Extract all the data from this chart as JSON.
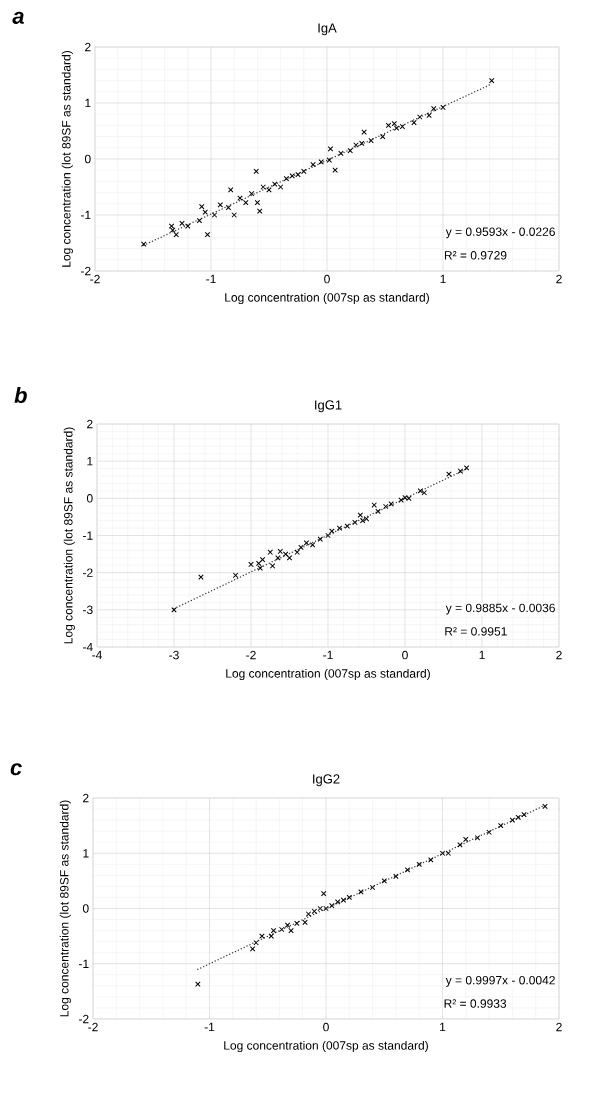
{
  "chart_data": [
    {
      "type": "scatter",
      "title": "IgA",
      "xlabel": "Log concentration (007sp as standard)",
      "ylabel": "Log concentration (lot 89SF as standard)",
      "xlim": [
        -2,
        2
      ],
      "ylim": [
        -2,
        2
      ],
      "xticks": [
        -2,
        -1,
        0,
        1,
        2
      ],
      "yticks": [
        -2,
        -1,
        0,
        1,
        2
      ],
      "grid": true,
      "annotations": [
        "a",
        "y = 0.9593x - 0.0226",
        "R² = 0.9729"
      ],
      "series": [
        {
          "type": "scatter",
          "color": "#000000",
          "marker": "cross",
          "x": [
            -1.58,
            -1.34,
            -1.33,
            -1.3,
            -1.25,
            -1.2,
            -1.1,
            -1.08,
            -1.05,
            -1.03,
            -0.97,
            -0.92,
            -0.85,
            -0.83,
            -0.8,
            -0.75,
            -0.7,
            -0.65,
            -0.61,
            -0.6,
            -0.58,
            -0.55,
            -0.5,
            -0.45,
            -0.4,
            -0.35,
            -0.3,
            -0.25,
            -0.2,
            -0.12,
            -0.05,
            0.02,
            0.03,
            0.07,
            0.12,
            0.2,
            0.25,
            0.3,
            0.32,
            0.38,
            0.48,
            0.53,
            0.58,
            0.6,
            0.65,
            0.75,
            0.8,
            0.88,
            0.92,
            1.0,
            1.42
          ],
          "values": [
            -1.52,
            -1.2,
            -1.27,
            -1.35,
            -1.15,
            -1.2,
            -1.1,
            -0.85,
            -0.95,
            -1.35,
            -1.0,
            -0.82,
            -0.87,
            -0.55,
            -1.0,
            -0.7,
            -0.78,
            -0.62,
            -0.22,
            -0.78,
            -0.93,
            -0.5,
            -0.55,
            -0.45,
            -0.5,
            -0.35,
            -0.3,
            -0.28,
            -0.22,
            -0.1,
            -0.05,
            -0.02,
            0.18,
            -0.2,
            0.1,
            0.15,
            0.25,
            0.28,
            0.48,
            0.33,
            0.4,
            0.6,
            0.63,
            0.55,
            0.58,
            0.65,
            0.75,
            0.78,
            0.9,
            0.92,
            1.4
          ]
        },
        {
          "type": "line",
          "color": "#404040",
          "line_style": "dotted",
          "x": [
            -1.58,
            1.42
          ],
          "values": [
            -1.54,
            1.34
          ]
        }
      ]
    },
    {
      "type": "scatter",
      "title": "IgG1",
      "xlabel": "Log concentration (007sp as standard)",
      "ylabel": "Log concentration (lot 89SF as standard)",
      "xlim": [
        -4,
        2
      ],
      "ylim": [
        -4,
        2
      ],
      "xticks": [
        -4,
        -3,
        -2,
        -1,
        0,
        1,
        2
      ],
      "yticks": [
        -4,
        -3,
        -2,
        -1,
        0,
        1,
        2
      ],
      "grid": true,
      "annotations": [
        "b",
        "y = 0.9885x - 0.0036",
        "R² = 0.9951"
      ],
      "series": [
        {
          "type": "scatter",
          "color": "#000000",
          "marker": "cross",
          "x": [
            -3.0,
            -2.65,
            -2.2,
            -2.0,
            -1.9,
            -1.88,
            -1.85,
            -1.75,
            -1.72,
            -1.65,
            -1.62,
            -1.55,
            -1.5,
            -1.4,
            -1.35,
            -1.28,
            -1.2,
            -1.1,
            -1.0,
            -0.95,
            -0.85,
            -0.75,
            -0.65,
            -0.58,
            -0.55,
            -0.5,
            -0.4,
            -0.35,
            -0.25,
            -0.18,
            -0.05,
            0.0,
            0.05,
            0.2,
            0.25,
            0.57,
            0.72,
            0.8
          ],
          "values": [
            -3.0,
            -2.12,
            -2.07,
            -1.78,
            -1.75,
            -1.88,
            -1.65,
            -1.45,
            -1.82,
            -1.6,
            -1.43,
            -1.5,
            -1.6,
            -1.45,
            -1.32,
            -1.2,
            -1.25,
            -1.1,
            -1.0,
            -0.88,
            -0.8,
            -0.75,
            -0.65,
            -0.45,
            -0.6,
            -0.55,
            -0.18,
            -0.35,
            -0.22,
            -0.15,
            -0.05,
            0.02,
            0.0,
            0.2,
            0.15,
            0.65,
            0.73,
            0.82
          ]
        },
        {
          "type": "line",
          "color": "#404040",
          "line_style": "dotted",
          "x": [
            -3.0,
            0.8
          ],
          "values": [
            -2.97,
            0.79
          ]
        }
      ]
    },
    {
      "type": "scatter",
      "title": "IgG2",
      "xlabel": "Log concentration (007sp as standard)",
      "ylabel": "Log concentration (lot 89SF as standard)",
      "xlim": [
        -2,
        2
      ],
      "ylim": [
        -2,
        2
      ],
      "xticks": [
        -2,
        -1,
        0,
        1,
        2
      ],
      "yticks": [
        -2,
        -1,
        0,
        1,
        2
      ],
      "grid": true,
      "annotations": [
        "c",
        "y = 0.9997x - 0.0042",
        "R² = 0.9933"
      ],
      "series": [
        {
          "type": "scatter",
          "color": "#000000",
          "marker": "cross",
          "x": [
            -1.1,
            -0.63,
            -0.6,
            -0.55,
            -0.47,
            -0.45,
            -0.38,
            -0.33,
            -0.3,
            -0.25,
            -0.18,
            -0.15,
            -0.1,
            -0.05,
            -0.02,
            0.0,
            0.05,
            0.1,
            0.15,
            0.2,
            0.3,
            0.4,
            0.5,
            0.6,
            0.7,
            0.8,
            0.9,
            1.0,
            1.05,
            1.15,
            1.2,
            1.3,
            1.4,
            1.5,
            1.6,
            1.65,
            1.7,
            1.88
          ],
          "values": [
            -1.37,
            -0.73,
            -0.62,
            -0.5,
            -0.5,
            -0.4,
            -0.38,
            -0.3,
            -0.4,
            -0.27,
            -0.25,
            -0.1,
            -0.05,
            0.0,
            0.27,
            0.0,
            0.05,
            0.12,
            0.15,
            0.2,
            0.3,
            0.38,
            0.5,
            0.58,
            0.7,
            0.8,
            0.88,
            1.0,
            1.0,
            1.15,
            1.25,
            1.28,
            1.38,
            1.5,
            1.6,
            1.65,
            1.7,
            1.85
          ]
        },
        {
          "type": "line",
          "color": "#404040",
          "line_style": "dotted",
          "x": [
            -1.1,
            1.88
          ],
          "values": [
            -1.1,
            1.87
          ]
        }
      ]
    }
  ]
}
